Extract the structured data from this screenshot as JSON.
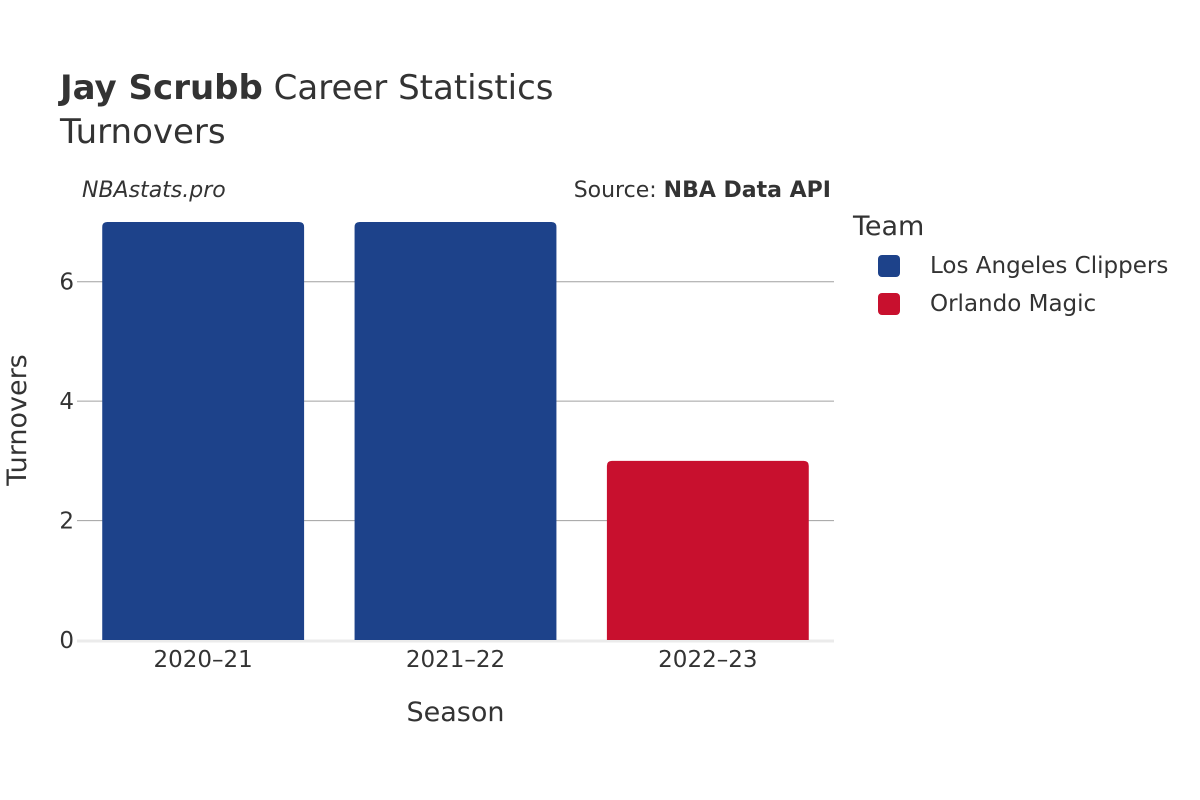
{
  "title": {
    "name": "Jay Scrubb",
    "rest": " Career Statistics",
    "subtitle": "Turnovers"
  },
  "watermark": "NBAstats.pro",
  "source": {
    "prefix": "Source: ",
    "name": "NBA Data API"
  },
  "legend": {
    "title": "Team",
    "items": [
      {
        "label": "Los Angeles Clippers",
        "color": "#1d428a"
      },
      {
        "label": "Orlando Magic",
        "color": "#c8102e"
      }
    ]
  },
  "chart_data": {
    "type": "bar",
    "title": "Jay Scrubb Career Statistics",
    "subtitle": "Turnovers",
    "xlabel": "Season",
    "ylabel": "Turnovers",
    "categories": [
      "2020–21",
      "2021–22",
      "2022–23"
    ],
    "values": [
      7,
      7,
      3
    ],
    "teams": [
      "Los Angeles Clippers",
      "Los Angeles Clippers",
      "Orlando Magic"
    ],
    "colors": [
      "#1d428a",
      "#1d428a",
      "#c8102e"
    ],
    "ylim": [
      0,
      7
    ],
    "yticks": [
      0,
      2,
      4,
      6
    ],
    "grid": true,
    "legend_position": "right"
  }
}
